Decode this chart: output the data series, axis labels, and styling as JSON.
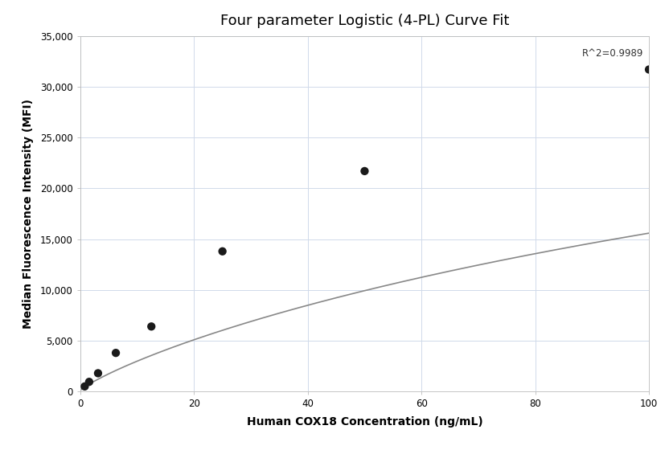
{
  "title": "Four parameter Logistic (4-PL) Curve Fit",
  "xlabel": "Human COX18 Concentration (ng/mL)",
  "ylabel": "Median Fluorescence Intensity (MFI)",
  "scatter_x": [
    0.781,
    1.563,
    3.125,
    6.25,
    12.5,
    25.0,
    50.0,
    100.0
  ],
  "scatter_y": [
    500,
    950,
    1800,
    3800,
    6400,
    13800,
    21700,
    31700
  ],
  "r_squared": "R^2=0.9989",
  "xlim": [
    0,
    100
  ],
  "ylim": [
    0,
    35000
  ],
  "yticks": [
    0,
    5000,
    10000,
    15000,
    20000,
    25000,
    30000,
    35000
  ],
  "ytick_labels": [
    "0",
    "5,000",
    "10,000",
    "15,000",
    "20,000",
    "25,000",
    "30,000",
    "35,000"
  ],
  "xticks": [
    0,
    20,
    40,
    60,
    80,
    100
  ],
  "dot_color": "#1a1a1a",
  "dot_size": 55,
  "line_color": "#888888",
  "line_width": 1.2,
  "background_color": "#ffffff",
  "grid_color": "#d0daea",
  "title_fontsize": 13,
  "label_fontsize": 10,
  "tick_fontsize": 8.5,
  "annotation_fontsize": 8.5,
  "4pl_A": 100,
  "4pl_B": 0.85,
  "4pl_C": 300,
  "4pl_D": 55000
}
